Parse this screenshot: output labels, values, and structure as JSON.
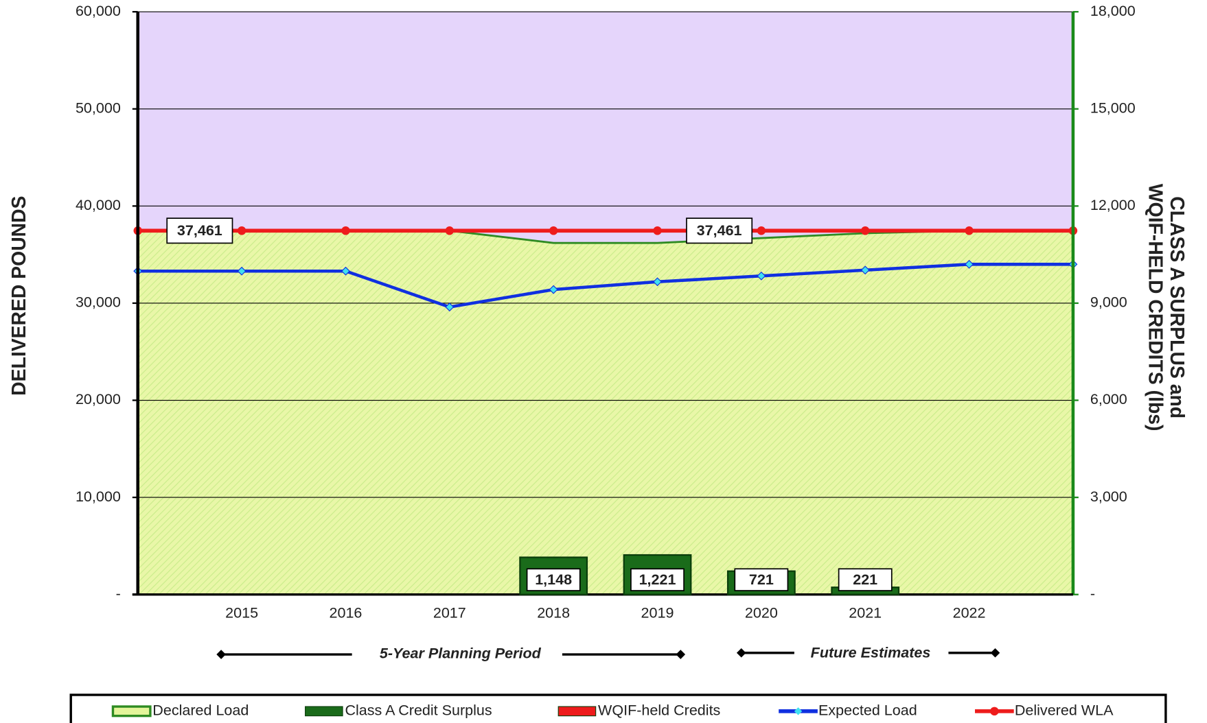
{
  "chart_data": {
    "type": "combo",
    "ylabel": "DELIVERED POUNDS",
    "y2label": [
      "CLASS A SURPLUS and",
      "WQIF-HELD CREDITS (lbs)"
    ],
    "categories": [
      null,
      "2015",
      "2016",
      "2017",
      "2018",
      "2019",
      "2020",
      "2021",
      "2022",
      null
    ],
    "ylim": [
      0,
      60000
    ],
    "yticks": [
      {
        "value": 0,
        "label": "-"
      },
      {
        "value": 10000,
        "label": "10,000"
      },
      {
        "value": 20000,
        "label": "20,000"
      },
      {
        "value": 30000,
        "label": "30,000"
      },
      {
        "value": 40000,
        "label": "40,000"
      },
      {
        "value": 50000,
        "label": "50,000"
      },
      {
        "value": 60000,
        "label": "60,000"
      }
    ],
    "y2lim": [
      0,
      18000
    ],
    "y2ticks": [
      {
        "value": 0,
        "label": "-"
      },
      {
        "value": 3000,
        "label": "3,000"
      },
      {
        "value": 6000,
        "label": "6,000"
      },
      {
        "value": 9000,
        "label": "9,000"
      },
      {
        "value": 12000,
        "label": "12,000"
      },
      {
        "value": 15000,
        "label": "15,000"
      },
      {
        "value": 18000,
        "label": "18,000"
      }
    ],
    "grid": true,
    "background": "#e5d5fb",
    "legend": "bottom",
    "series": [
      {
        "name": "Declared Load",
        "type": "area",
        "color": "#2e8b22",
        "fill": "#e4f59a",
        "values": [
          37461,
          37461,
          37461,
          37461,
          36200,
          36200,
          36700,
          37200,
          37461,
          37461
        ]
      },
      {
        "name": "Class A Credit Surplus",
        "type": "bar",
        "axis": "y2",
        "color": "#1a6b1a",
        "values": [
          null,
          null,
          null,
          null,
          1148,
          1221,
          721,
          221,
          null,
          null
        ],
        "value_labels": [
          null,
          null,
          null,
          null,
          "1,148",
          "1,221",
          "721",
          "221",
          null,
          null
        ]
      },
      {
        "name": "WQIF-held Credits",
        "type": "bar",
        "axis": "y2",
        "color": "#ee1c1c",
        "values": [
          null,
          null,
          null,
          null,
          null,
          null,
          null,
          null,
          null,
          null
        ]
      },
      {
        "name": "Expected Load",
        "type": "line",
        "color": "#1030e0",
        "marker": "diamond",
        "marker_color": "#40e0f0",
        "values": [
          33300,
          33300,
          33300,
          29600,
          31400,
          32200,
          32800,
          33400,
          34000,
          34000
        ]
      },
      {
        "name": "Delivered WLA",
        "type": "line",
        "color": "#ee1c1c",
        "marker": "circle",
        "marker_color": "#ee1c1c",
        "values": [
          37461,
          37461,
          37461,
          37461,
          37461,
          37461,
          37461,
          37461,
          37461,
          37461
        ],
        "value_labels": [
          null,
          "37,461",
          null,
          null,
          null,
          null,
          "37,461",
          null,
          null,
          null
        ]
      }
    ],
    "annotations": [
      "5-Year Planning Period",
      "Future Estimates"
    ]
  }
}
